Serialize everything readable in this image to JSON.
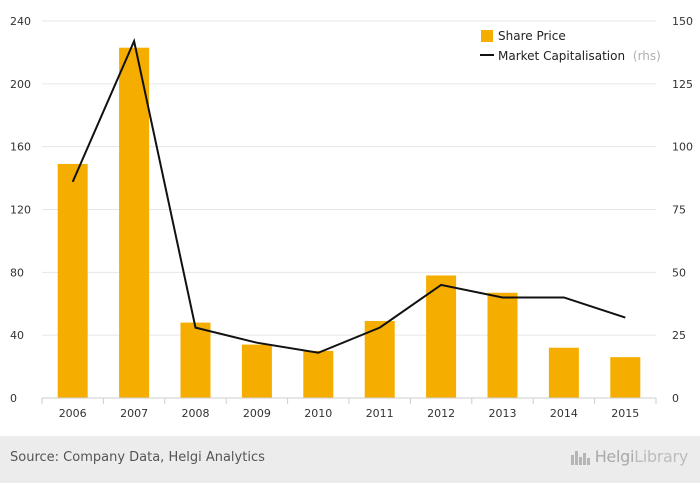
{
  "chart_data": {
    "type": "bar",
    "categories": [
      "2006",
      "2007",
      "2008",
      "2009",
      "2010",
      "2011",
      "2012",
      "2013",
      "2014",
      "2015"
    ],
    "series": [
      {
        "name": "Share Price",
        "type": "bar",
        "axis": "left",
        "values": [
          149,
          223,
          48,
          34,
          30,
          49,
          78,
          67,
          32,
          26
        ]
      },
      {
        "name": "Market Capitalisation",
        "type": "line",
        "axis": "right",
        "values": [
          86,
          142,
          28,
          22,
          18,
          28,
          45,
          40,
          40,
          32
        ]
      }
    ],
    "legend_suffix": "(rhs)",
    "y_left": {
      "min": 0,
      "max": 240,
      "ticks": [
        0,
        40,
        80,
        120,
        160,
        200,
        240
      ]
    },
    "y_right": {
      "min": 0,
      "max": 150,
      "ticks": [
        0,
        25,
        50,
        75,
        100,
        125,
        150
      ]
    },
    "grid": true,
    "legend_position": "top-right",
    "colors": {
      "bar": "#f5ae00",
      "line": "#111111",
      "grid": "#e6e6e6",
      "axis": "#cccccc"
    }
  },
  "footer": {
    "source": "Source: Company Data, Helgi Analytics",
    "brand_main": "Helgi",
    "brand_lib": "Library",
    "brand_icon": "city-skyline-icon"
  }
}
